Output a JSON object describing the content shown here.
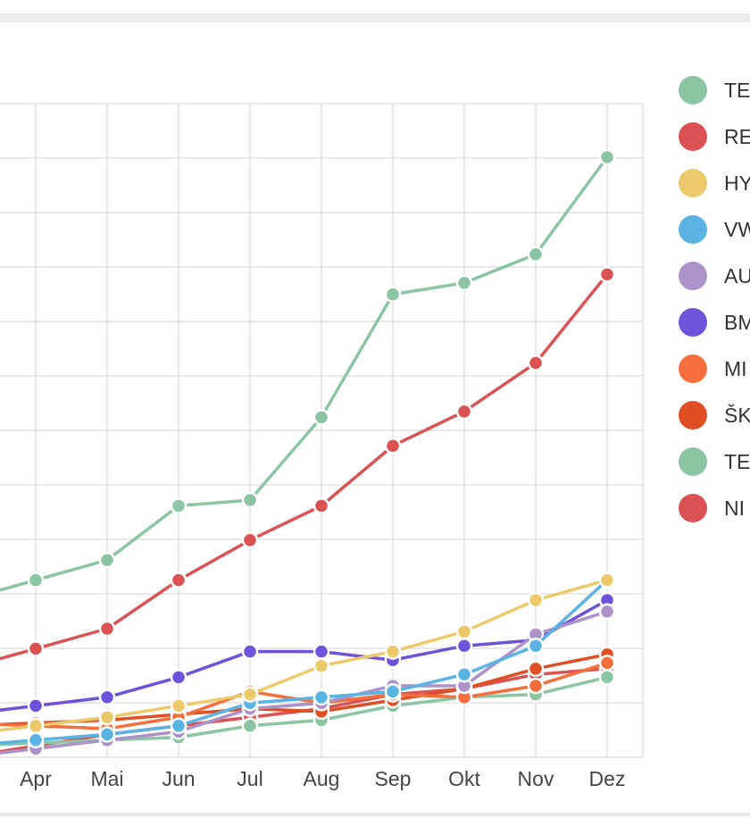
{
  "chart_data": {
    "type": "line",
    "title": "",
    "xlabel": "",
    "ylabel": "",
    "x": [
      "Apr",
      "Mai",
      "Jun",
      "Jul",
      "Aug",
      "Sep",
      "Okt",
      "Nov",
      "Dez"
    ],
    "grid": true,
    "legend_position": "right",
    "series": [
      {
        "name": "TE",
        "color": "#8cc5a4",
        "values": [
          6.2,
          6.9,
          8.8,
          9.0,
          11.9,
          16.2,
          16.6,
          17.6,
          21.0
        ]
      },
      {
        "name": "RE",
        "color": "#db5254",
        "values": [
          3.8,
          4.5,
          6.2,
          7.6,
          8.8,
          10.9,
          12.1,
          13.8,
          16.9
        ]
      },
      {
        "name": "HY",
        "color": "#ecca6c",
        "values": [
          1.1,
          1.4,
          1.8,
          2.2,
          3.2,
          3.7,
          4.4,
          5.5,
          6.2
        ]
      },
      {
        "name": "VW",
        "color": "#5ab3e3",
        "values": [
          0.6,
          0.8,
          1.1,
          1.9,
          2.1,
          2.3,
          2.9,
          3.9,
          6.2
        ]
      },
      {
        "name": "AU",
        "color": "#ab92c9",
        "values": [
          0.3,
          0.6,
          0.9,
          1.7,
          1.9,
          2.5,
          2.5,
          4.3,
          5.1
        ]
      },
      {
        "name": "BM",
        "color": "#6e52d9",
        "values": [
          1.8,
          2.1,
          2.8,
          3.7,
          3.7,
          3.4,
          3.9,
          4.1,
          5.5
        ]
      },
      {
        "name": "MI",
        "color": "#f56e3b",
        "values": [
          1.1,
          1.0,
          1.4,
          2.3,
          1.9,
          2.2,
          2.1,
          2.5,
          3.3
        ]
      },
      {
        "name": "ŠK",
        "color": "#e04e24",
        "values": [
          1.2,
          1.3,
          1.5,
          1.7,
          1.6,
          2.0,
          2.4,
          3.1,
          3.6
        ]
      },
      {
        "name": "TE",
        "color": "#8cc5a4",
        "values": [
          0.5,
          0.6,
          0.7,
          1.1,
          1.3,
          1.8,
          2.1,
          2.2,
          2.8
        ]
      },
      {
        "name": "NI",
        "color": "#db5254",
        "values": [
          0.4,
          0.8,
          1.1,
          1.4,
          1.7,
          2.2,
          2.4,
          2.9,
          3.1
        ]
      }
    ]
  }
}
